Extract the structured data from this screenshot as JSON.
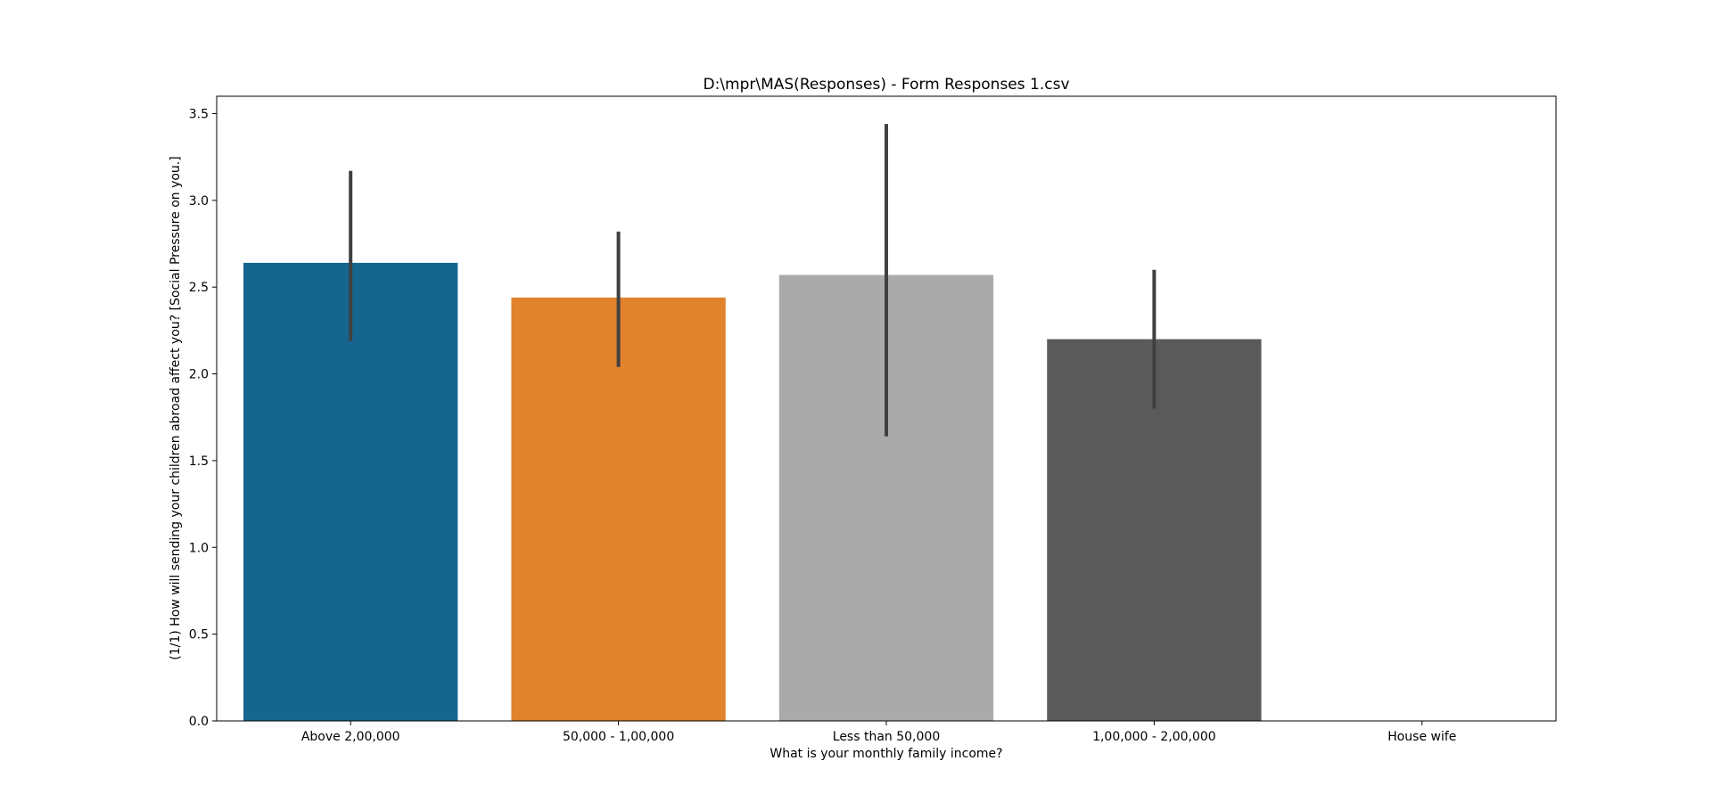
{
  "chart_data": {
    "type": "bar",
    "title": "D:\\mpr\\MAS(Responses) - Form Responses 1.csv",
    "xlabel": "What is your monthly family income?",
    "ylabel": "(1/1) How will sending your children abroad affect you? [Social Pressure on you.]",
    "categories": [
      "Above 2,00,000",
      "50,000 - 1,00,000",
      "Less than 50,000",
      "1,00,000 - 2,00,000",
      "House wife"
    ],
    "values": [
      2.64,
      2.44,
      2.57,
      2.2,
      null
    ],
    "error_low": [
      2.19,
      2.04,
      1.64,
      1.8,
      null
    ],
    "error_high": [
      3.17,
      2.82,
      3.44,
      2.6,
      null
    ],
    "ylim": [
      0,
      3.6
    ],
    "yticks": [
      0.0,
      0.5,
      1.0,
      1.5,
      2.0,
      2.5,
      3.0,
      3.5
    ],
    "ytick_labels": [
      "0.0",
      "0.5",
      "1.0",
      "1.5",
      "2.0",
      "2.5",
      "3.0",
      "3.5"
    ],
    "colors": [
      "#15658f",
      "#e1822d",
      "#aaaaaa",
      "#5a5a5a",
      "#ffffff"
    ],
    "error_color": "#404040",
    "grid": false,
    "legend": "none"
  }
}
